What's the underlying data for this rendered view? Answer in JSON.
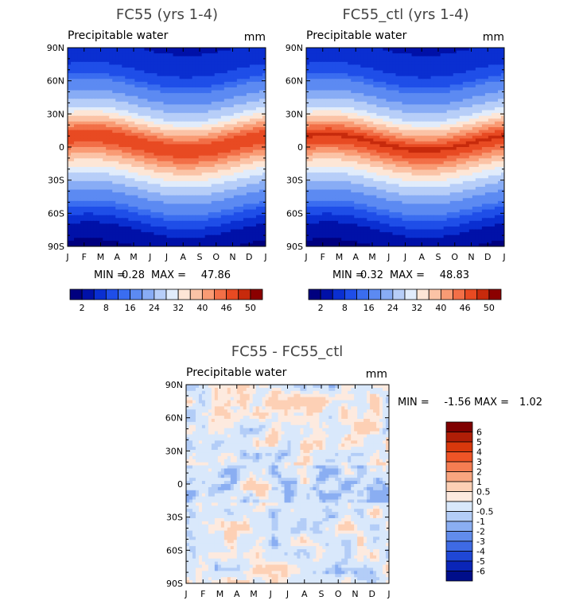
{
  "chart_data": [
    {
      "type": "heatmap",
      "title": "FC55 (yrs 1-4)",
      "subtitle": "Precipitable water",
      "units": "mm",
      "x_tick_labels": [
        "J",
        "F",
        "M",
        "A",
        "M",
        "J",
        "J",
        "A",
        "S",
        "O",
        "N",
        "D",
        "J"
      ],
      "y_tick_labels": [
        "90N",
        "60N",
        "30N",
        "0",
        "30S",
        "60S",
        "90S"
      ],
      "ylim": [
        -90,
        90
      ],
      "stats": {
        "min_label": "MIN =",
        "min": "0.28",
        "max_label": "MAX =",
        "max": "47.86"
      },
      "colorbar": {
        "orientation": "horizontal",
        "tick_labels": [
          "2",
          "8",
          "16",
          "24",
          "32",
          "40",
          "46",
          "50"
        ]
      },
      "latitude_profile": [
        {
          "lat": 90,
          "value": 2
        },
        {
          "lat": 75,
          "value": 3
        },
        {
          "lat": 60,
          "value": 6
        },
        {
          "lat": 45,
          "value": 12
        },
        {
          "lat": 30,
          "value": 20
        },
        {
          "lat": 15,
          "value": 34
        },
        {
          "lat": 5,
          "value": 44
        },
        {
          "lat": 0,
          "value": 42
        },
        {
          "lat": -15,
          "value": 30
        },
        {
          "lat": -30,
          "value": 20
        },
        {
          "lat": -45,
          "value": 12
        },
        {
          "lat": -60,
          "value": 6
        },
        {
          "lat": -75,
          "value": 2
        },
        {
          "lat": -90,
          "value": 1
        }
      ]
    },
    {
      "type": "heatmap",
      "title": "FC55_ctl (yrs 1-4)",
      "subtitle": "Precipitable water",
      "units": "mm",
      "x_tick_labels": [
        "J",
        "F",
        "M",
        "A",
        "M",
        "J",
        "J",
        "A",
        "S",
        "O",
        "N",
        "D",
        "J"
      ],
      "y_tick_labels": [
        "90N",
        "60N",
        "30N",
        "0",
        "30S",
        "60S",
        "90S"
      ],
      "ylim": [
        -90,
        90
      ],
      "stats": {
        "min_label": "MIN =",
        "min": "0.32",
        "max_label": "MAX =",
        "max": "48.83"
      },
      "colorbar": {
        "orientation": "horizontal",
        "tick_labels": [
          "2",
          "8",
          "16",
          "24",
          "32",
          "40",
          "46",
          "50"
        ]
      },
      "latitude_profile": [
        {
          "lat": 90,
          "value": 2
        },
        {
          "lat": 75,
          "value": 3
        },
        {
          "lat": 60,
          "value": 6
        },
        {
          "lat": 45,
          "value": 12
        },
        {
          "lat": 30,
          "value": 20
        },
        {
          "lat": 15,
          "value": 34
        },
        {
          "lat": 5,
          "value": 45
        },
        {
          "lat": 0,
          "value": 43
        },
        {
          "lat": -15,
          "value": 30
        },
        {
          "lat": -30,
          "value": 20
        },
        {
          "lat": -45,
          "value": 12
        },
        {
          "lat": -60,
          "value": 6
        },
        {
          "lat": -75,
          "value": 2
        },
        {
          "lat": -90,
          "value": 1
        }
      ]
    },
    {
      "type": "heatmap",
      "title": "FC55 - FC55_ctl",
      "subtitle": "Precipitable water",
      "units": "mm",
      "x_tick_labels": [
        "J",
        "F",
        "M",
        "A",
        "M",
        "J",
        "J",
        "A",
        "S",
        "O",
        "N",
        "D",
        "J"
      ],
      "y_tick_labels": [
        "90N",
        "60N",
        "30N",
        "0",
        "30S",
        "60S",
        "90S"
      ],
      "ylim": [
        -90,
        90
      ],
      "stats": {
        "min_label": "MIN =",
        "min": "-1.56",
        "max_label": "MAX =",
        "max": "1.02"
      },
      "colorbar": {
        "orientation": "vertical",
        "tick_labels": [
          "6",
          "5",
          "4",
          "3",
          "2",
          "1",
          "0.5",
          "0",
          "-0.5",
          "-1",
          "-2",
          "-3",
          "-4",
          "-5",
          "-6"
        ]
      }
    }
  ],
  "colors": {
    "positive_palette": [
      "#00007f",
      "#0011a8",
      "#0a2fd1",
      "#1f4ee8",
      "#3a6df0",
      "#5c8af2",
      "#88acf5",
      "#b7cef8",
      "#e1ecfb",
      "#fde6d6",
      "#fbc3a6",
      "#f99b74",
      "#f26f47",
      "#e84a22",
      "#c72a0c",
      "#8b0000"
    ],
    "diff_palette": [
      "#7f0000",
      "#b01e07",
      "#d8380c",
      "#ef5426",
      "#f57d52",
      "#f9a57f",
      "#fdd0b5",
      "#fdeadf",
      "#d9e8fb",
      "#b3cdf7",
      "#8aaef2",
      "#618cec",
      "#3e6ae4",
      "#1f47d6",
      "#0a25b8",
      "#000e8a"
    ]
  }
}
